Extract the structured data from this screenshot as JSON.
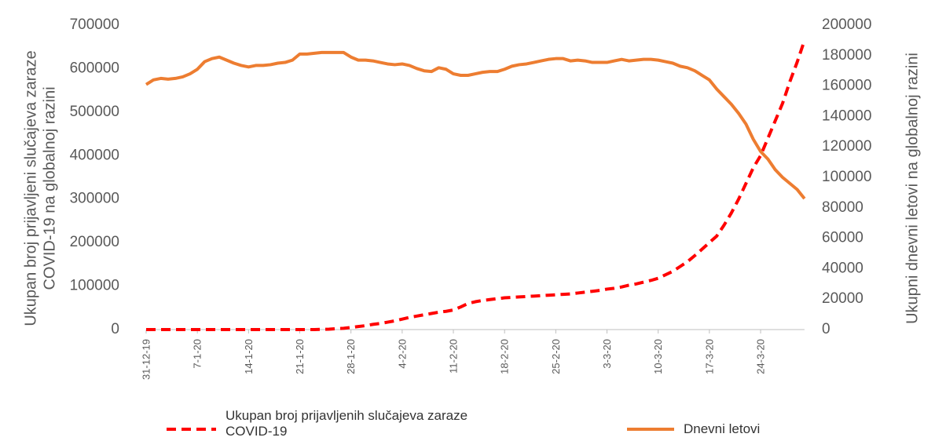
{
  "chart_data": {
    "type": "line",
    "y_label": [
      "Ukupan broj prijavljeni slučajeva zaraze",
      "COVID-19 na globalnoj razini"
    ],
    "y2_label": "Ukupni dnevni letovi na globalnoj razini",
    "categories": [
      "31-12-19",
      null,
      null,
      null,
      null,
      null,
      null,
      "7-1-20",
      null,
      null,
      null,
      null,
      null,
      null,
      "14-1-20",
      null,
      null,
      null,
      null,
      null,
      null,
      "21-1-20",
      null,
      null,
      null,
      null,
      null,
      null,
      "28-1-20",
      null,
      null,
      null,
      null,
      null,
      null,
      "4-2-20",
      null,
      null,
      null,
      null,
      null,
      null,
      "11-2-20",
      null,
      null,
      null,
      null,
      null,
      null,
      "18-2-20",
      null,
      null,
      null,
      null,
      null,
      null,
      "25-2-20",
      null,
      null,
      null,
      null,
      null,
      null,
      "3-3-20",
      null,
      null,
      null,
      null,
      null,
      null,
      "10-3-20",
      null,
      null,
      null,
      null,
      null,
      null,
      "17-3-20",
      null,
      null,
      null,
      null,
      null,
      null,
      "24-3-20",
      null,
      null,
      null,
      null,
      null,
      null
    ],
    "series": [
      {
        "name": "Ukupan broj prijavljenih slučajeva zaraze COVID-19",
        "color": "#ff0000",
        "dashed": true,
        "values": [
          0,
          0,
          0,
          0,
          0,
          0,
          0,
          0,
          0,
          0,
          0,
          0,
          0,
          0,
          0,
          0,
          0,
          0,
          0,
          0,
          0,
          0,
          0,
          0,
          500,
          1000,
          2000,
          3000,
          5000,
          7000,
          9000,
          12000,
          14000,
          17000,
          20000,
          24000,
          28000,
          31000,
          34000,
          37000,
          40000,
          42000,
          45000,
          52000,
          60000,
          64000,
          67000,
          69000,
          71000,
          73000,
          74000,
          75000,
          76000,
          77000,
          78000,
          79000,
          80000,
          81000,
          82000,
          84000,
          86000,
          88000,
          90000,
          93000,
          95000,
          98000,
          102000,
          105000,
          109000,
          113000,
          118000,
          126000,
          134000,
          145000,
          156000,
          170000,
          185000,
          200000,
          215000,
          240000,
          268000,
          300000,
          336000,
          372000,
          400000,
          440000,
          480000,
          520000,
          570000,
          615000,
          665000
        ]
      },
      {
        "name": "Dnevni letovi",
        "color": "#ed7d31",
        "axis": "y2",
        "values": [
          161000,
          164000,
          165000,
          164500,
          165000,
          166000,
          168000,
          171000,
          176000,
          178000,
          179000,
          177000,
          175000,
          173500,
          172500,
          173500,
          173500,
          174000,
          175000,
          175500,
          177000,
          181000,
          181000,
          181500,
          182000,
          182000,
          182000,
          182000,
          179000,
          177000,
          177000,
          176500,
          175500,
          174500,
          174000,
          174500,
          173500,
          171500,
          170000,
          169500,
          172000,
          171000,
          168000,
          167000,
          167000,
          168000,
          169000,
          169500,
          169500,
          171000,
          173000,
          174000,
          174500,
          175500,
          176500,
          177500,
          178000,
          178000,
          176500,
          177000,
          176500,
          175500,
          175500,
          175500,
          176500,
          177500,
          176500,
          177000,
          177500,
          177500,
          177000,
          176000,
          175000,
          173000,
          172000,
          170000,
          167000,
          164000,
          158000,
          153000,
          148000,
          142000,
          135000,
          125000,
          117000,
          112000,
          105000,
          100000,
          96000,
          92000,
          86000
        ]
      }
    ],
    "ylim": [
      0,
      700000
    ],
    "yticks": [
      0,
      100000,
      200000,
      300000,
      400000,
      500000,
      600000,
      700000
    ],
    "y2lim": [
      0,
      200000
    ],
    "y2ticks": [
      0,
      20000,
      40000,
      60000,
      80000,
      100000,
      120000,
      140000,
      160000,
      180000,
      200000
    ],
    "grid": false,
    "legend": "bottom"
  }
}
